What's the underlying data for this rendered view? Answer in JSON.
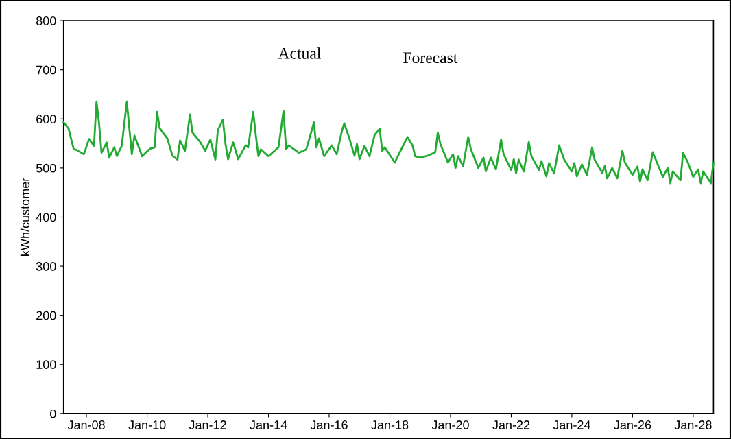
{
  "chart_data": {
    "type": "line",
    "ylabel": "kWh/customer",
    "annotations": [
      "Actual",
      "Forecast"
    ],
    "x": [
      "2007-04",
      "2007-06",
      "2007-08",
      "2007-09",
      "2007-12",
      "2008-02",
      "2008-04",
      "2008-05",
      "2008-06",
      "2008-07",
      "2008-09",
      "2008-10",
      "2008-12",
      "2009-01",
      "2009-03",
      "2009-05",
      "2009-06",
      "2009-07",
      "2009-08",
      "2009-11",
      "2010-02",
      "2010-04",
      "2010-05",
      "2010-06",
      "2010-09",
      "2010-11",
      "2011-01",
      "2011-02",
      "2011-04",
      "2011-06",
      "2011-07",
      "2011-10",
      "2011-12",
      "2012-02",
      "2012-04",
      "2012-05",
      "2012-07",
      "2012-08",
      "2012-09",
      "2012-11",
      "2013-01",
      "2013-04",
      "2013-05",
      "2013-07",
      "2013-08",
      "2013-09",
      "2013-10",
      "2014-01",
      "2014-05",
      "2014-07",
      "2014-08",
      "2014-09",
      "2015-01",
      "2015-04",
      "2015-06",
      "2015-07",
      "2015-08",
      "2015-09",
      "2015-11",
      "2016-02",
      "2016-04",
      "2016-06",
      "2016-07",
      "2016-09",
      "2016-11",
      "2016-12",
      "2017-01",
      "2017-03",
      "2017-05",
      "2017-07",
      "2017-09",
      "2017-10",
      "2017-11",
      "2018-03",
      "2018-05",
      "2018-08",
      "2018-10",
      "2018-11",
      "2019-01",
      "2019-04",
      "2019-07",
      "2019-08",
      "2019-09",
      "2019-12",
      "2020-02",
      "2020-03",
      "2020-04",
      "2020-06",
      "2020-08",
      "2020-09",
      "2020-12",
      "2021-02",
      "2021-03",
      "2021-05",
      "2021-07",
      "2021-09",
      "2021-10",
      "2022-01",
      "2022-02",
      "2022-03",
      "2022-04",
      "2022-06",
      "2022-08",
      "2022-09",
      "2022-12",
      "2023-01",
      "2023-03",
      "2023-04",
      "2023-06",
      "2023-08",
      "2023-10",
      "2024-01",
      "2024-02",
      "2024-03",
      "2024-05",
      "2024-07",
      "2024-09",
      "2024-10",
      "2025-01",
      "2025-02",
      "2025-03",
      "2025-05",
      "2025-07",
      "2025-09",
      "2025-10",
      "2026-01",
      "2026-03",
      "2026-04",
      "2026-05",
      "2026-07",
      "2026-09",
      "2026-11",
      "2027-01",
      "2027-03",
      "2027-04",
      "2027-05",
      "2027-08",
      "2027-09",
      "2027-11",
      "2028-01",
      "2028-03",
      "2028-04",
      "2028-05",
      "2028-08",
      "2028-09"
    ],
    "series": [
      {
        "color": "#22aa33",
        "values": [
          593,
          580,
          538,
          537,
          528,
          559,
          545,
          635,
          591,
          531,
          552,
          521,
          542,
          524,
          545,
          635,
          580,
          528,
          566,
          524,
          539,
          542,
          614,
          581,
          560,
          525,
          517,
          556,
          535,
          609,
          572,
          553,
          535,
          558,
          517,
          577,
          598,
          549,
          518,
          552,
          518,
          546,
          542,
          614,
          567,
          524,
          538,
          524,
          542,
          616,
          538,
          546,
          531,
          538,
          574,
          593,
          542,
          560,
          524,
          546,
          528,
          574,
          591,
          560,
          525,
          549,
          518,
          545,
          524,
          567,
          580,
          535,
          542,
          511,
          532,
          563,
          546,
          524,
          521,
          525,
          532,
          572,
          549,
          511,
          528,
          500,
          524,
          504,
          563,
          539,
          500,
          521,
          493,
          521,
          497,
          558,
          528,
          496,
          518,
          489,
          517,
          493,
          553,
          524,
          496,
          514,
          483,
          510,
          489,
          546,
          517,
          493,
          510,
          483,
          507,
          486,
          542,
          517,
          490,
          504,
          479,
          500,
          479,
          535,
          511,
          486,
          503,
          472,
          497,
          475,
          532,
          507,
          482,
          500,
          469,
          493,
          475,
          531,
          510,
          482,
          497,
          469,
          493,
          469,
          511
        ]
      }
    ],
    "xlim": [
      "2007-04",
      "2028-09"
    ],
    "xticks": [
      {
        "value": "2008-01",
        "label": "Jan-08"
      },
      {
        "value": "2010-01",
        "label": "Jan-10"
      },
      {
        "value": "2012-01",
        "label": "Jan-12"
      },
      {
        "value": "2014-01",
        "label": "Jan-14"
      },
      {
        "value": "2016-01",
        "label": "Jan-16"
      },
      {
        "value": "2018-01",
        "label": "Jan-18"
      },
      {
        "value": "2020-01",
        "label": "Jan-20"
      },
      {
        "value": "2022-01",
        "label": "Jan-22"
      },
      {
        "value": "2024-01",
        "label": "Jan-24"
      },
      {
        "value": "2026-01",
        "label": "Jan-26"
      },
      {
        "value": "2028-01",
        "label": "Jan-28"
      }
    ],
    "ylim": [
      0,
      800
    ],
    "yticks": [
      0,
      100,
      200,
      300,
      400,
      500,
      600,
      700,
      800
    ],
    "grid": false,
    "legend": false,
    "marker": "none",
    "line_style": "solid"
  }
}
